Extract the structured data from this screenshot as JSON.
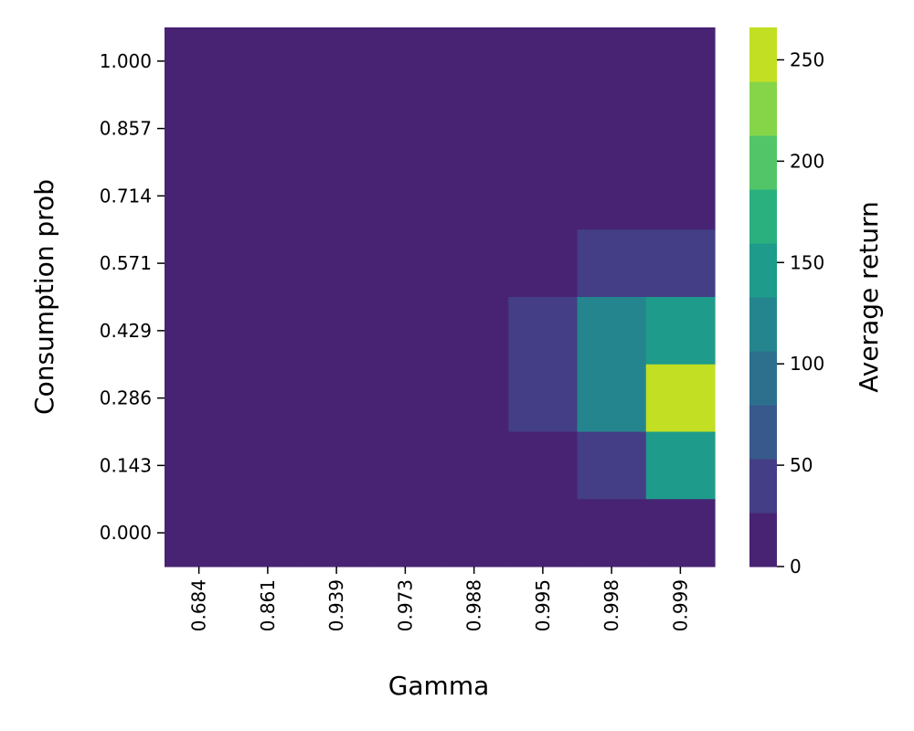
{
  "chart_data": {
    "type": "heatmap",
    "title": "",
    "xlabel": "Gamma",
    "ylabel": "Consumption prob",
    "x_categories": [
      "0.684",
      "0.861",
      "0.939",
      "0.973",
      "0.988",
      "0.995",
      "0.998",
      "0.999"
    ],
    "y_categories": [
      "1.000",
      "0.857",
      "0.714",
      "0.571",
      "0.429",
      "0.286",
      "0.143",
      "0.000"
    ],
    "values": [
      [
        0,
        0,
        0,
        0,
        0,
        0,
        0,
        0
      ],
      [
        0,
        0,
        0,
        0,
        0,
        0,
        0,
        0
      ],
      [
        0,
        0,
        0,
        0,
        0,
        0,
        0,
        0
      ],
      [
        0,
        0,
        0,
        0,
        0,
        0,
        40,
        40
      ],
      [
        0,
        0,
        0,
        0,
        0,
        40,
        120,
        145
      ],
      [
        0,
        0,
        0,
        0,
        0,
        40,
        120,
        260
      ],
      [
        0,
        0,
        0,
        0,
        0,
        0,
        40,
        145
      ],
      [
        0,
        0,
        0,
        0,
        0,
        0,
        0,
        0
      ]
    ],
    "colorbar": {
      "label": "Average return",
      "range": [
        0,
        266
      ],
      "ticks": [
        0,
        50,
        100,
        150,
        200,
        250
      ],
      "tick_labels": [
        "0",
        "50",
        "100",
        "150",
        "200",
        "250"
      ],
      "bin_colors": [
        "#482374",
        "#433e85",
        "#38598c",
        "#2d708e",
        "#25858e",
        "#1e9b8a",
        "#2ab07f",
        "#52c569",
        "#86d549",
        "#c2df23"
      ]
    },
    "grid": false
  }
}
